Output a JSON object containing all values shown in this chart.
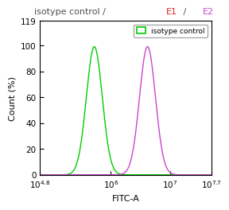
{
  "title_parts": [
    {
      "text": "isotype control / ",
      "color": "#505050"
    },
    {
      "text": "E1",
      "color": "#dd2222"
    },
    {
      "text": " / ",
      "color": "#505050"
    },
    {
      "text": "E2",
      "color": "#cc44cc"
    }
  ],
  "xlabel": "FITC-A",
  "ylabel": "Count (%)",
  "xlim_log": [
    4.8,
    7.7
  ],
  "ylim": [
    0,
    119
  ],
  "yticks": [
    0,
    20,
    40,
    60,
    80,
    100,
    119
  ],
  "xtick_positions": [
    4.8,
    6.0,
    7.0,
    7.7
  ],
  "xtick_labels": [
    "10^{4.8}",
    "10^6",
    "10^7",
    "10^{7.7}"
  ],
  "green_peak_log": 5.72,
  "green_sigma_log": 0.135,
  "green_color": "#00cc00",
  "magenta_peak_log": 6.62,
  "magenta_sigma_log": 0.135,
  "magenta_color": "#cc44cc",
  "peak_height": 99,
  "legend_label": "isotype control",
  "background_color": "#ffffff",
  "title_fontsize": 8.0,
  "axis_fontsize": 8.0,
  "tick_fontsize": 7.5
}
